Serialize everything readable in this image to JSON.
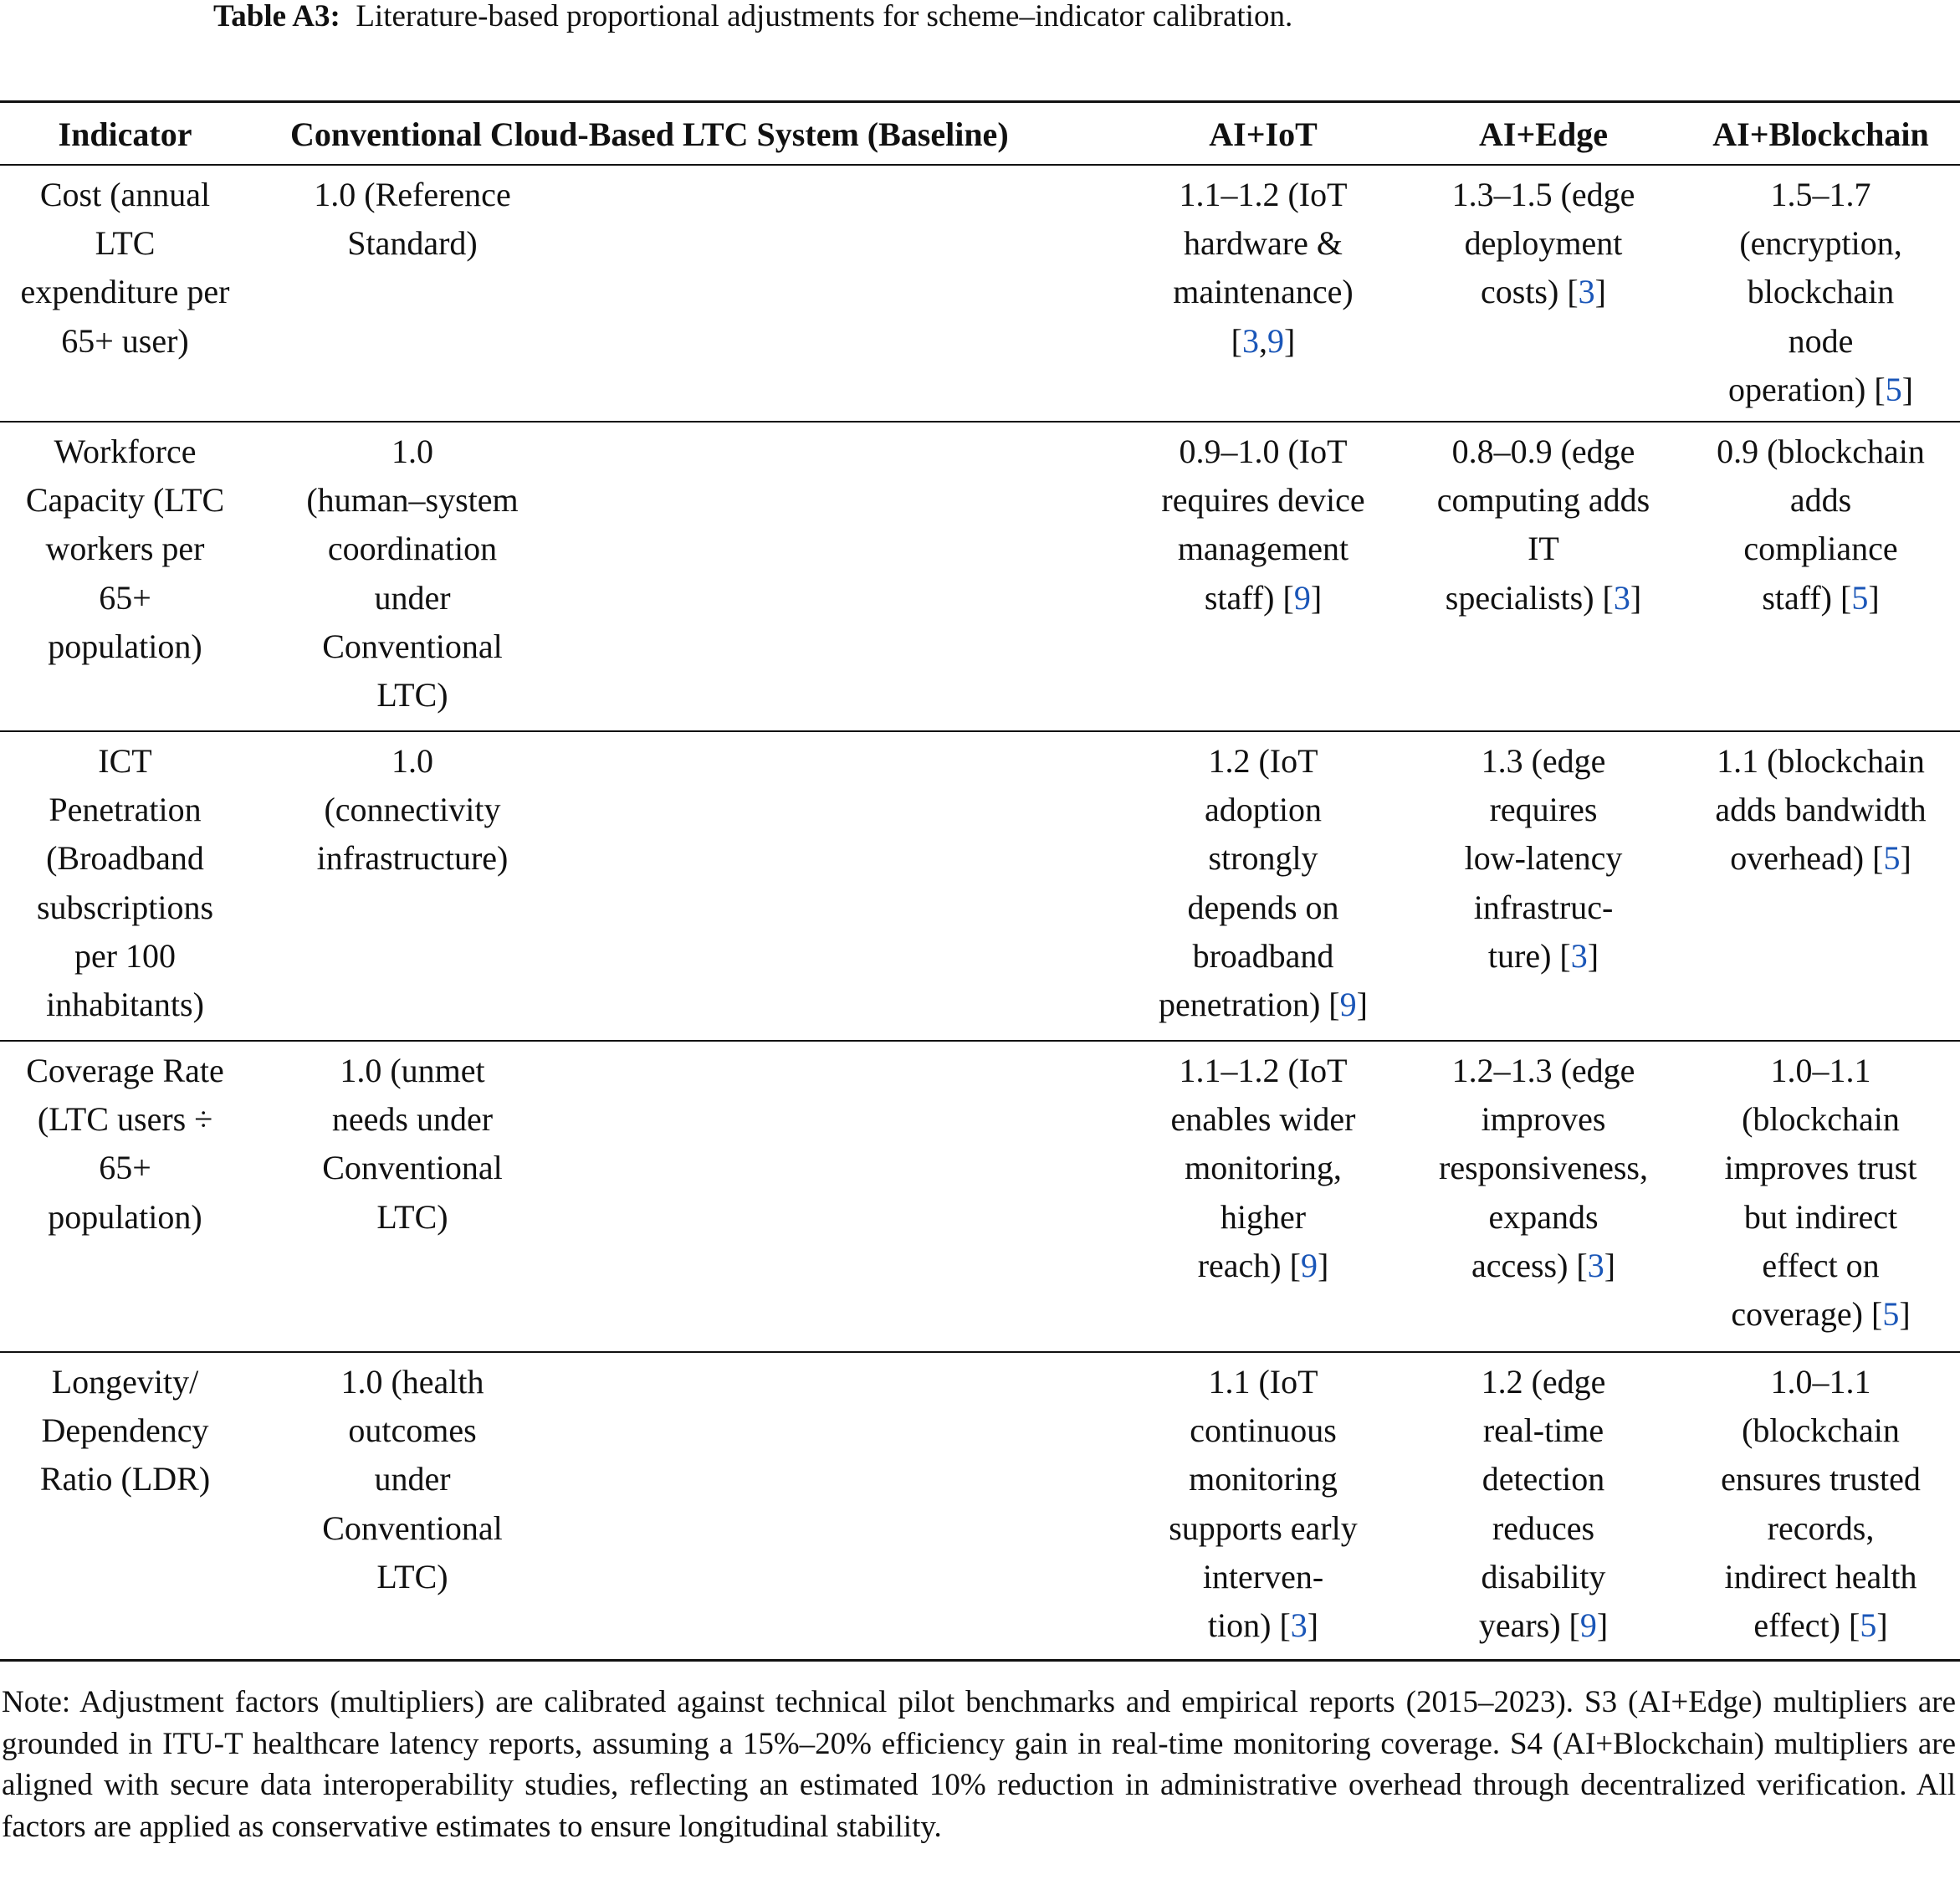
{
  "caption": {
    "label": "Table A3:",
    "text": "Literature-based proportional adjustments for scheme–indicator calibration."
  },
  "colors": {
    "reference_link": "#1a56b8",
    "text": "#111111"
  },
  "table": {
    "headers": [
      "Indicator",
      "Conventional Cloud-Based LTC System (Baseline)",
      "AI+IoT",
      "AI+Edge",
      "AI+Blockchain"
    ],
    "rows": [
      [
        [
          "Cost (annual",
          "LTC",
          "expenditure per",
          "65+ user)"
        ],
        [
          "1.0 (Reference",
          "Standard)"
        ],
        [
          "1.1–1.2 (IoT",
          "hardware &",
          "maintenance)",
          "[3,9]"
        ],
        [
          "1.3–1.5 (edge",
          "deployment",
          "costs) [3]"
        ],
        [
          "1.5–1.7",
          "(encryption,",
          "blockchain",
          "node",
          "operation) [5]"
        ]
      ],
      [
        [
          "Workforce",
          "Capacity (LTC",
          "workers per",
          "65+",
          "population)"
        ],
        [
          "1.0",
          "(human–system",
          "coordination",
          "under",
          "Conventional",
          "LTC)"
        ],
        [
          "0.9–1.0 (IoT",
          "requires device",
          "management",
          "staff) [9]"
        ],
        [
          "0.8–0.9 (edge",
          "computing adds",
          "IT",
          "specialists) [3]"
        ],
        [
          "0.9 (blockchain",
          "adds",
          "compliance",
          "staff) [5]"
        ]
      ],
      [
        [
          "ICT",
          "Penetration",
          "(Broadband",
          "subscriptions",
          "per 100",
          "inhabitants)"
        ],
        [
          "1.0",
          "(connectivity",
          "infrastructure)"
        ],
        [
          "1.2 (IoT",
          "adoption",
          "strongly",
          "depends on",
          "broadband",
          "penetration) [9]"
        ],
        [
          "1.3 (edge",
          "requires",
          "low-latency",
          "infrastruc-",
          "ture) [3]"
        ],
        [
          "1.1 (blockchain",
          "adds bandwidth",
          "overhead) [5]"
        ]
      ],
      [
        [
          "Coverage Rate",
          "(LTC users ÷",
          "65+",
          "population)"
        ],
        [
          "1.0 (unmet",
          "needs under",
          "Conventional",
          "LTC)"
        ],
        [
          "1.1–1.2 (IoT",
          "enables wider",
          "monitoring,",
          "higher",
          "reach) [9]"
        ],
        [
          "1.2–1.3 (edge",
          "improves",
          "responsiveness,",
          "expands",
          "access) [3]"
        ],
        [
          "1.0–1.1",
          "(blockchain",
          "improves trust",
          "but indirect",
          "effect on",
          "coverage) [5]"
        ]
      ],
      [
        [
          "Longevity/",
          "Dependency",
          "Ratio (LDR)"
        ],
        [
          "1.0 (health",
          "outcomes",
          "under",
          "Conventional",
          "LTC)"
        ],
        [
          "1.1 (IoT",
          "continuous",
          "monitoring",
          "supports early",
          "interven-",
          "tion) [3]"
        ],
        [
          "1.2 (edge",
          "real-time",
          "detection",
          "reduces",
          "disability",
          "years) [9]"
        ],
        [
          "1.0–1.1",
          "(blockchain",
          "ensures trusted",
          "records,",
          "indirect health",
          "effect) [5]"
        ]
      ]
    ]
  },
  "note": "Note: Adjustment factors (multipliers) are calibrated against technical pilot benchmarks and empirical reports (2015–2023). S3 (AI+Edge) multipliers are grounded in ITU-T healthcare latency reports, assuming a 15%–20% efficiency gain in real-time monitoring coverage. S4 (AI+Blockchain) multipliers are aligned with secure data interoperability studies, reflecting an estimated 10% reduction in administrative overhead through decentralized verification. All factors are applied as conservative estimates to ensure longitudinal stability."
}
